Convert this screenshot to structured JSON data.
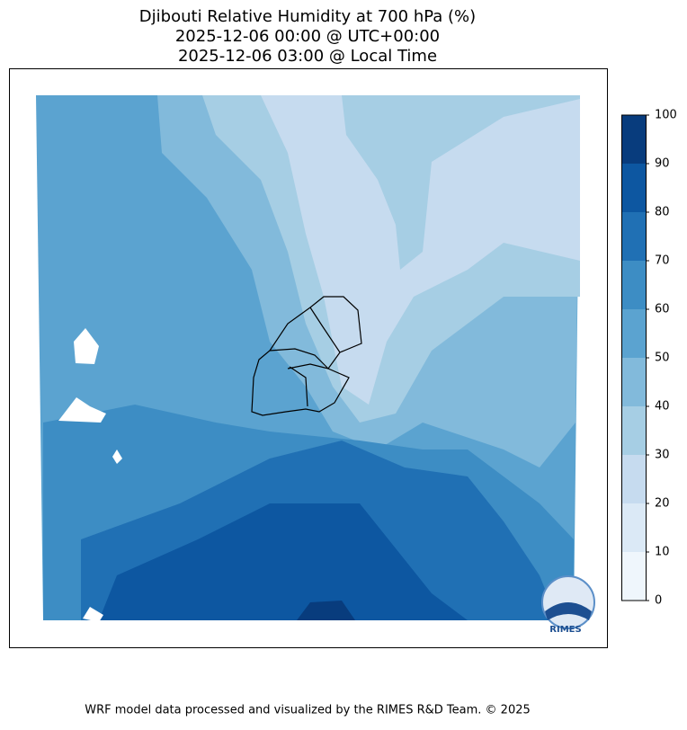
{
  "chart_data": {
    "type": "contour-map",
    "title": "Djibouti Relative Humidity at 700 hPa (%)",
    "subtitle": [
      "2025-12-06 00:00 @ UTC+00:00",
      "2025-12-06 03:00 @ Local Time"
    ],
    "clim": [
      0,
      100
    ],
    "cticks": [
      0,
      10,
      20,
      30,
      40,
      50,
      60,
      70,
      80,
      90,
      100
    ],
    "colors": [
      "#eff6fc",
      "#dbe9f6",
      "#c6dbef",
      "#a6cee4",
      "#82badb",
      "#5ba3d0",
      "#3d8dc4",
      "#2070b4",
      "#0d57a1",
      "#083c7d"
    ],
    "logo_text": "RIMES"
  },
  "footer": "WRF model data processed and visualized by the RIMES R&D Team. © 2025"
}
